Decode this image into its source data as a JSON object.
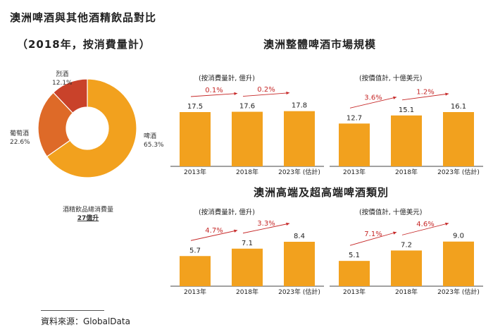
{
  "header": {
    "title": "澳洲啤酒與其他酒精飲品對比",
    "subtitle": "（2018年，按消費量計）"
  },
  "sections": {
    "market_size_title": "澳洲整體啤酒市場規模",
    "premium_title": "澳洲高端及超高端啤酒類別"
  },
  "colors": {
    "bar": "#F2A11E",
    "arrow": "#C62828",
    "beer": "#F2A11E",
    "wine": "#DE6A28",
    "spirits": "#C9422A",
    "axis": "#444444"
  },
  "chart_data": [
    {
      "id": "pie",
      "type": "pie",
      "title": "（2018年，按消費量計）",
      "slices": [
        {
          "key": "beer",
          "name": "啤酒",
          "value": 65.3,
          "label": "65.3%"
        },
        {
          "key": "wine",
          "name": "葡萄酒",
          "value": 22.6,
          "label": "22.6%"
        },
        {
          "key": "spirits",
          "name": "烈酒",
          "value": 12.1,
          "label": "12.1%"
        }
      ],
      "center_caption": "酒精飲品總消費量",
      "center_value": "27億升"
    },
    {
      "id": "market-volume",
      "type": "bar",
      "subtitle": "(按消費量計, 億升)",
      "categories": [
        "2013年",
        "2018年",
        "2023年 (估計)"
      ],
      "values": [
        17.5,
        17.6,
        17.8
      ],
      "value_labels": [
        "17.5",
        "17.6",
        "17.8"
      ],
      "growth": [
        "0.1%",
        "0.2%"
      ],
      "ylim": [
        0,
        25
      ]
    },
    {
      "id": "market-value",
      "type": "bar",
      "subtitle": "(按價值計, 十億美元)",
      "categories": [
        "2013年",
        "2018年",
        "2023年 (估計)"
      ],
      "values": [
        12.7,
        15.1,
        16.1
      ],
      "value_labels": [
        "12.7",
        "15.1",
        "16.1"
      ],
      "growth": [
        "3.6%",
        "1.2%"
      ],
      "ylim": [
        0,
        23
      ]
    },
    {
      "id": "premium-volume",
      "type": "bar",
      "subtitle": "(按消費量計, 億升)",
      "categories": [
        "2013年",
        "2018年",
        "2023年 (估計)"
      ],
      "values": [
        5.7,
        7.1,
        8.4
      ],
      "value_labels": [
        "5.7",
        "7.1",
        "8.4"
      ],
      "growth": [
        "4.7%",
        "3.3%"
      ],
      "ylim": [
        0,
        12
      ]
    },
    {
      "id": "premium-value",
      "type": "bar",
      "subtitle": "(按價值計, 十億美元)",
      "categories": [
        "2013年",
        "2018年",
        "2023年 (估計)"
      ],
      "values": [
        5.1,
        7.2,
        9.0
      ],
      "value_labels": [
        "5.1",
        "7.2",
        "9.0"
      ],
      "growth": [
        "7.1%",
        "4.6%"
      ],
      "ylim": [
        0,
        12.8
      ]
    }
  ],
  "footer": {
    "source": "資料來源：GlobalData"
  }
}
